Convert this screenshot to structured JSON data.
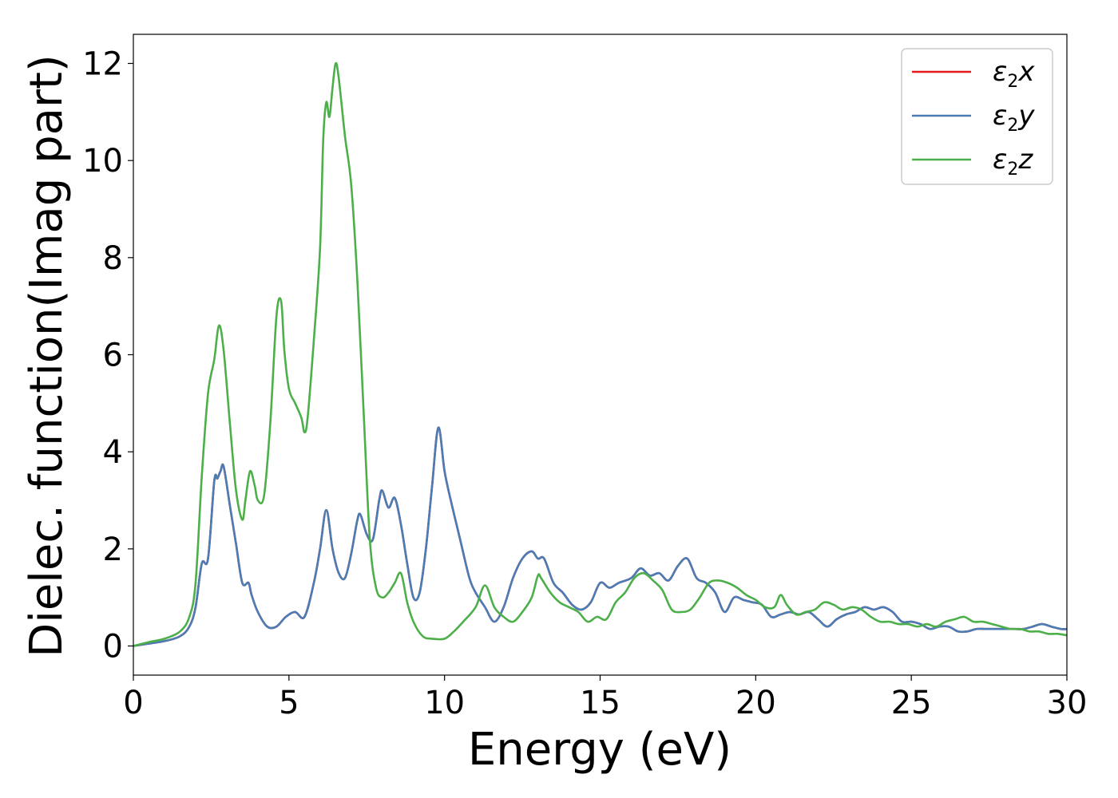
{
  "chart_data": {
    "type": "line",
    "title": "",
    "xlabel": "Energy (eV)",
    "ylabel": "Dielec. function(Imag part)",
    "xlim": [
      0,
      30
    ],
    "ylim": [
      -0.6,
      12.6
    ],
    "xticks": [
      0,
      5,
      10,
      15,
      20,
      25,
      30
    ],
    "yticks": [
      0,
      2,
      4,
      6,
      8,
      10,
      12
    ],
    "grid": false,
    "legend_position": "top-right",
    "series": [
      {
        "name": "ε₂x",
        "sym": "ε",
        "sub": "2",
        "axis": "x",
        "color": "#e41a1c",
        "x": [
          0,
          0.5,
          1.0,
          1.5,
          1.8,
          2.0,
          2.2,
          2.4,
          2.6,
          2.7,
          2.8,
          2.9,
          3.1,
          3.3,
          3.5,
          3.7,
          3.8,
          4.0,
          4.3,
          4.6,
          4.9,
          5.2,
          5.5,
          5.8,
          6.0,
          6.2,
          6.4,
          6.6,
          6.8,
          7.0,
          7.2,
          7.3,
          7.5,
          7.7,
          7.9,
          8.0,
          8.2,
          8.4,
          8.6,
          8.8,
          9.0,
          9.2,
          9.4,
          9.6,
          9.8,
          10.0,
          10.2,
          10.5,
          10.8,
          11.0,
          11.3,
          11.6,
          11.9,
          12.2,
          12.5,
          12.8,
          13.0,
          13.2,
          13.5,
          13.8,
          14.1,
          14.4,
          14.7,
          15.0,
          15.3,
          15.6,
          16.0,
          16.3,
          16.6,
          16.9,
          17.2,
          17.5,
          17.8,
          18.1,
          18.4,
          18.7,
          19.0,
          19.3,
          19.6,
          19.9,
          20.2,
          20.5,
          20.8,
          21.1,
          21.4,
          21.7,
          22.0,
          22.3,
          22.6,
          22.9,
          23.2,
          23.5,
          23.8,
          24.1,
          24.4,
          24.7,
          25.0,
          25.3,
          25.6,
          25.9,
          26.2,
          26.5,
          26.8,
          27.1,
          27.4,
          27.7,
          28.0,
          28.3,
          28.6,
          28.9,
          29.2,
          29.5,
          29.8,
          30.0
        ],
        "y": [
          0,
          0.05,
          0.1,
          0.2,
          0.4,
          0.8,
          1.7,
          1.8,
          3.4,
          3.45,
          3.6,
          3.7,
          2.9,
          2.1,
          1.3,
          1.3,
          1.05,
          0.7,
          0.4,
          0.4,
          0.6,
          0.7,
          0.6,
          1.3,
          2.0,
          2.8,
          2.0,
          1.5,
          1.4,
          1.9,
          2.6,
          2.7,
          2.3,
          2.2,
          3.0,
          3.2,
          2.85,
          3.05,
          2.5,
          1.7,
          1.0,
          1.1,
          2.0,
          3.3,
          4.5,
          3.6,
          3.0,
          2.2,
          1.4,
          1.1,
          0.8,
          0.5,
          0.8,
          1.4,
          1.8,
          1.95,
          1.8,
          1.8,
          1.3,
          1.1,
          0.85,
          0.75,
          0.9,
          1.3,
          1.2,
          1.3,
          1.4,
          1.6,
          1.45,
          1.5,
          1.35,
          1.65,
          1.8,
          1.4,
          1.3,
          1.1,
          0.7,
          1.0,
          0.95,
          0.9,
          0.85,
          0.6,
          0.65,
          0.7,
          0.65,
          0.7,
          0.55,
          0.4,
          0.55,
          0.65,
          0.7,
          0.8,
          0.75,
          0.8,
          0.7,
          0.5,
          0.5,
          0.45,
          0.35,
          0.4,
          0.4,
          0.3,
          0.3,
          0.35,
          0.35,
          0.35,
          0.35,
          0.35,
          0.35,
          0.4,
          0.45,
          0.4,
          0.35,
          0.35
        ]
      },
      {
        "name": "ε₂y",
        "sym": "ε",
        "sub": "2",
        "axis": "y",
        "color": "#4a7cb5",
        "x": [
          0,
          0.5,
          1.0,
          1.5,
          1.8,
          2.0,
          2.2,
          2.4,
          2.6,
          2.7,
          2.8,
          2.9,
          3.1,
          3.3,
          3.5,
          3.7,
          3.8,
          4.0,
          4.3,
          4.6,
          4.9,
          5.2,
          5.5,
          5.8,
          6.0,
          6.2,
          6.4,
          6.6,
          6.8,
          7.0,
          7.2,
          7.3,
          7.5,
          7.7,
          7.9,
          8.0,
          8.2,
          8.4,
          8.6,
          8.8,
          9.0,
          9.2,
          9.4,
          9.6,
          9.8,
          10.0,
          10.2,
          10.5,
          10.8,
          11.0,
          11.3,
          11.6,
          11.9,
          12.2,
          12.5,
          12.8,
          13.0,
          13.2,
          13.5,
          13.8,
          14.1,
          14.4,
          14.7,
          15.0,
          15.3,
          15.6,
          16.0,
          16.3,
          16.6,
          16.9,
          17.2,
          17.5,
          17.8,
          18.1,
          18.4,
          18.7,
          19.0,
          19.3,
          19.6,
          19.9,
          20.2,
          20.5,
          20.8,
          21.1,
          21.4,
          21.7,
          22.0,
          22.3,
          22.6,
          22.9,
          23.2,
          23.5,
          23.8,
          24.1,
          24.4,
          24.7,
          25.0,
          25.3,
          25.6,
          25.9,
          26.2,
          26.5,
          26.8,
          27.1,
          27.4,
          27.7,
          28.0,
          28.3,
          28.6,
          28.9,
          29.2,
          29.5,
          29.8,
          30.0
        ],
        "y": [
          0,
          0.05,
          0.1,
          0.2,
          0.4,
          0.8,
          1.7,
          1.8,
          3.4,
          3.45,
          3.6,
          3.7,
          2.9,
          2.1,
          1.3,
          1.3,
          1.05,
          0.7,
          0.4,
          0.4,
          0.6,
          0.7,
          0.6,
          1.3,
          2.0,
          2.8,
          2.0,
          1.5,
          1.4,
          1.9,
          2.6,
          2.7,
          2.3,
          2.2,
          3.0,
          3.2,
          2.85,
          3.05,
          2.5,
          1.7,
          1.0,
          1.1,
          2.0,
          3.3,
          4.5,
          3.6,
          3.0,
          2.2,
          1.4,
          1.1,
          0.8,
          0.5,
          0.8,
          1.4,
          1.8,
          1.95,
          1.8,
          1.8,
          1.3,
          1.1,
          0.85,
          0.75,
          0.9,
          1.3,
          1.2,
          1.3,
          1.4,
          1.6,
          1.45,
          1.5,
          1.35,
          1.65,
          1.8,
          1.4,
          1.3,
          1.1,
          0.7,
          1.0,
          0.95,
          0.9,
          0.85,
          0.6,
          0.65,
          0.7,
          0.65,
          0.7,
          0.55,
          0.4,
          0.55,
          0.65,
          0.7,
          0.8,
          0.75,
          0.8,
          0.7,
          0.5,
          0.5,
          0.45,
          0.35,
          0.4,
          0.4,
          0.3,
          0.3,
          0.35,
          0.35,
          0.35,
          0.35,
          0.35,
          0.35,
          0.4,
          0.45,
          0.4,
          0.35,
          0.35
        ]
      },
      {
        "name": "ε₂z",
        "sym": "ε",
        "sub": "2",
        "axis": "z",
        "color": "#4daf4a",
        "x": [
          0,
          0.5,
          1.0,
          1.5,
          1.8,
          2.0,
          2.2,
          2.4,
          2.6,
          2.75,
          2.9,
          3.1,
          3.3,
          3.5,
          3.6,
          3.75,
          3.9,
          4.0,
          4.2,
          4.4,
          4.6,
          4.75,
          4.85,
          5.0,
          5.2,
          5.4,
          5.5,
          5.6,
          5.8,
          6.0,
          6.1,
          6.2,
          6.3,
          6.4,
          6.5,
          6.6,
          6.8,
          7.0,
          7.2,
          7.4,
          7.6,
          7.8,
          8.0,
          8.2,
          8.4,
          8.6,
          8.8,
          9.0,
          9.3,
          9.6,
          10.0,
          10.3,
          10.6,
          11.0,
          11.3,
          11.6,
          11.9,
          12.2,
          12.5,
          12.8,
          13.0,
          13.1,
          13.4,
          13.7,
          14.0,
          14.3,
          14.6,
          14.9,
          15.2,
          15.5,
          15.8,
          16.1,
          16.4,
          16.7,
          17.0,
          17.3,
          17.6,
          17.9,
          18.2,
          18.5,
          18.8,
          19.1,
          19.4,
          19.7,
          20.0,
          20.3,
          20.6,
          20.8,
          21.0,
          21.3,
          21.6,
          21.9,
          22.2,
          22.5,
          22.8,
          23.1,
          23.4,
          23.7,
          24.0,
          24.3,
          24.6,
          24.9,
          25.2,
          25.5,
          25.8,
          26.1,
          26.4,
          26.7,
          27.0,
          27.3,
          27.6,
          27.9,
          28.2,
          28.5,
          28.8,
          29.1,
          29.4,
          29.7,
          30.0
        ],
        "y": [
          0,
          0.08,
          0.15,
          0.3,
          0.6,
          1.3,
          3.5,
          5.2,
          5.9,
          6.6,
          6.1,
          4.6,
          3.2,
          2.6,
          3.0,
          3.6,
          3.3,
          3.0,
          3.1,
          4.6,
          6.8,
          7.1,
          6.1,
          5.3,
          5.0,
          4.7,
          4.4,
          4.7,
          6.3,
          8.2,
          10.4,
          11.2,
          10.9,
          11.5,
          12.0,
          11.7,
          10.5,
          9.5,
          7.5,
          4.8,
          2.2,
          1.2,
          1.0,
          1.1,
          1.3,
          1.5,
          0.9,
          0.5,
          0.2,
          0.15,
          0.15,
          0.3,
          0.5,
          0.8,
          1.25,
          0.8,
          0.6,
          0.5,
          0.7,
          1.0,
          1.45,
          1.4,
          1.1,
          0.9,
          0.8,
          0.7,
          0.5,
          0.6,
          0.55,
          0.9,
          1.1,
          1.4,
          1.5,
          1.35,
          1.15,
          0.75,
          0.7,
          0.75,
          1.0,
          1.3,
          1.35,
          1.3,
          1.2,
          1.05,
          0.95,
          0.8,
          0.8,
          1.05,
          0.85,
          0.65,
          0.7,
          0.75,
          0.9,
          0.85,
          0.75,
          0.8,
          0.75,
          0.6,
          0.5,
          0.5,
          0.45,
          0.45,
          0.4,
          0.45,
          0.4,
          0.5,
          0.55,
          0.6,
          0.5,
          0.5,
          0.45,
          0.4,
          0.35,
          0.35,
          0.3,
          0.3,
          0.25,
          0.25,
          0.22
        ]
      }
    ]
  }
}
